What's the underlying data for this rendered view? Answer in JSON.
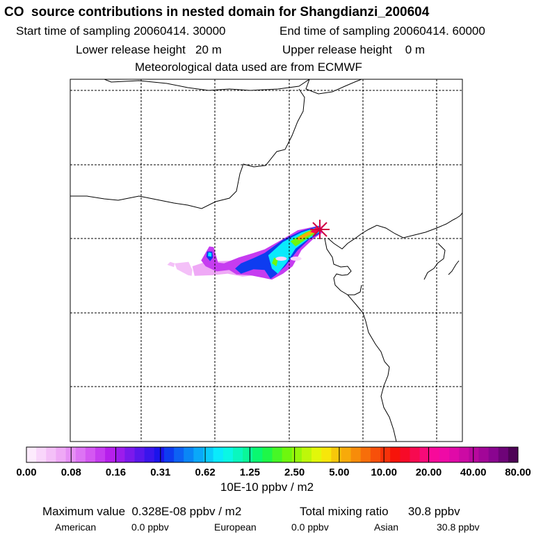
{
  "header": {
    "title": "CO  source contributions in nested domain for Shangdianzi_200604",
    "start": "Start time of sampling 20060414. 30000",
    "end": "End time of sampling 20060414. 60000",
    "lower": "Lower release height   20 m",
    "upper": "Upper release height    0 m",
    "met": "Meteorological data used are from ECMWF"
  },
  "footer": {
    "unit": "10E-10 ppbv / m2",
    "max_value": "Maximum value  0.328E-08 ppbv / m2",
    "total": "Total mixing ratio      30.8 ppbv",
    "regions": [
      {
        "name": "American",
        "value": "0.0 ppbv"
      },
      {
        "name": "European",
        "value": "0.0 ppbv"
      },
      {
        "name": "Asian",
        "value": "30.8 ppbv"
      }
    ]
  },
  "chart_data": {
    "type": "heatmap",
    "colorbar": {
      "tick_labels": [
        "0.00",
        "0.08",
        "0.16",
        "0.31",
        "0.62",
        "1.25",
        "2.50",
        "5.00",
        "10.00",
        "20.00",
        "40.00",
        "80.00"
      ],
      "colors": [
        "#ffffff",
        "#fdebfd",
        "#f9d6fb",
        "#f4c0f8",
        "#efa9f6",
        "#e690f5",
        "#dd74f4",
        "#d458f2",
        "#c63cf0",
        "#b61fec",
        "#9c1cec",
        "#7b19ec",
        "#5a17ec",
        "#3a15ec",
        "#1b14ec",
        "#0e3cf0",
        "#0d62f4",
        "#0a86f6",
        "#0aa8f9",
        "#0acbfb",
        "#0aeafc",
        "#0af7e5",
        "#0af7bf",
        "#0af799",
        "#0af770",
        "#1ef748",
        "#46f726",
        "#6ef70e",
        "#96f70a",
        "#bef70a",
        "#e2f70a",
        "#f7e60a",
        "#f7c80a",
        "#f7aa0a",
        "#f78c0a",
        "#f76e0a",
        "#f7500a",
        "#f7320a",
        "#f7140a",
        "#f70a28",
        "#f70a50",
        "#f70a78",
        "#f70a9a",
        "#ef0aa6",
        "#e00aa8",
        "#cc0aa4",
        "#b8089e",
        "#a20698",
        "#8a0590",
        "#6e0478",
        "#4e0356"
      ]
    },
    "grid": true,
    "source_site": "Shangdianzi",
    "plumes": [
      {
        "level": 0.04,
        "points": [
          [
            -1.02,
            0.04
          ],
          [
            -0.83,
            0.06
          ],
          [
            -0.78,
            -0.05
          ],
          [
            -0.79,
            -0.13
          ],
          [
            -0.84,
            -0.12
          ],
          [
            -0.99,
            -0.04
          ]
        ]
      },
      {
        "level": 0.04,
        "points": [
          [
            -1.02,
            0.04
          ],
          [
            -1.08,
            0.06
          ],
          [
            -1.12,
            0.02
          ],
          [
            -1.03,
            -0.01
          ]
        ]
      },
      {
        "level": 0.06,
        "points": [
          [
            -0.78,
            0.0
          ],
          [
            -0.6,
            0.06
          ],
          [
            -0.2,
            0.08
          ],
          [
            -0.05,
            0.08
          ],
          [
            0.2,
            0.18
          ],
          [
            0.42,
            0.34
          ],
          [
            0.63,
            0.45
          ],
          [
            0.92,
            0.55
          ],
          [
            0.99,
            0.55
          ],
          [
            0.98,
            0.44
          ],
          [
            0.82,
            0.36
          ],
          [
            0.68,
            0.22
          ],
          [
            0.55,
            0.0
          ],
          [
            0.45,
            -0.05
          ],
          [
            0.3,
            -0.1
          ],
          [
            0.1,
            -0.12
          ],
          [
            -0.1,
            -0.14
          ],
          [
            -0.3,
            -0.1
          ],
          [
            -0.5,
            -0.12
          ],
          [
            -0.75,
            -0.13
          ]
        ]
      },
      {
        "level": 0.12,
        "points": [
          [
            -0.62,
            0.15
          ],
          [
            -0.55,
            0.27
          ],
          [
            -0.49,
            0.26
          ],
          [
            -0.46,
            0.15
          ],
          [
            -0.43,
            0.05
          ],
          [
            -0.35,
            0.04
          ],
          [
            -0.15,
            0.12
          ],
          [
            0.05,
            0.18
          ],
          [
            0.2,
            0.23
          ],
          [
            0.45,
            0.37
          ],
          [
            0.65,
            0.49
          ],
          [
            0.93,
            0.55
          ],
          [
            0.98,
            0.46
          ],
          [
            0.85,
            0.36
          ],
          [
            0.7,
            0.22
          ],
          [
            0.58,
            0.0
          ],
          [
            0.45,
            -0.1
          ],
          [
            0.3,
            -0.18
          ],
          [
            0.15,
            -0.15
          ],
          [
            0.0,
            -0.12
          ],
          [
            -0.18,
            -0.11
          ],
          [
            -0.28,
            -0.05
          ],
          [
            -0.45,
            -0.07
          ],
          [
            -0.6,
            0.0
          ],
          [
            -0.66,
            0.08
          ]
        ]
      },
      {
        "level": 0.35,
        "points": [
          [
            -0.59,
            0.13
          ],
          [
            -0.58,
            0.2
          ],
          [
            -0.51,
            0.2
          ],
          [
            -0.5,
            0.12
          ],
          [
            -0.54,
            0.07
          ]
        ]
      },
      {
        "level": 0.35,
        "points": [
          [
            -0.2,
            -0.03
          ],
          [
            -0.12,
            0.04
          ],
          [
            0.05,
            0.11
          ],
          [
            0.2,
            0.18
          ],
          [
            0.45,
            0.36
          ],
          [
            0.7,
            0.48
          ],
          [
            0.94,
            0.55
          ],
          [
            0.96,
            0.45
          ],
          [
            0.8,
            0.36
          ],
          [
            0.65,
            0.22
          ],
          [
            0.48,
            0.0
          ],
          [
            0.35,
            -0.12
          ],
          [
            0.28,
            -0.17
          ],
          [
            0.2,
            -0.05
          ],
          [
            0.05,
            -0.04
          ],
          [
            -0.12,
            -0.1
          ]
        ]
      },
      {
        "level": 0.8,
        "points": [
          [
            -0.57,
            0.14
          ],
          [
            -0.56,
            0.19
          ],
          [
            -0.52,
            0.18
          ],
          [
            -0.52,
            0.13
          ]
        ]
      },
      {
        "level": 0.8,
        "points": [
          [
            0.25,
            0.15
          ],
          [
            0.45,
            0.33
          ],
          [
            0.7,
            0.46
          ],
          [
            0.94,
            0.54
          ],
          [
            0.94,
            0.46
          ],
          [
            0.78,
            0.36
          ],
          [
            0.62,
            0.24
          ],
          [
            0.5,
            0.05
          ],
          [
            0.38,
            -0.1
          ],
          [
            0.3,
            -0.03
          ]
        ]
      },
      {
        "level": 2.2,
        "points": [
          [
            0.3,
            0.04
          ],
          [
            0.33,
            0.12
          ],
          [
            0.38,
            0.09
          ],
          [
            0.36,
            0.0
          ]
        ]
      },
      {
        "level": 2.2,
        "points": [
          [
            0.55,
            0.34
          ],
          [
            0.75,
            0.46
          ],
          [
            0.93,
            0.53
          ],
          [
            0.93,
            0.47
          ],
          [
            0.78,
            0.38
          ],
          [
            0.62,
            0.27
          ]
        ]
      },
      {
        "level": 5.5,
        "points": [
          [
            0.63,
            0.38
          ],
          [
            0.78,
            0.46
          ],
          [
            0.92,
            0.52
          ],
          [
            0.92,
            0.48
          ],
          [
            0.78,
            0.41
          ],
          [
            0.67,
            0.35
          ]
        ]
      },
      {
        "level": 15.0,
        "points": [
          [
            0.82,
            0.47
          ],
          [
            0.9,
            0.53
          ],
          [
            0.95,
            0.52
          ],
          [
            0.9,
            0.44
          ]
        ]
      }
    ],
    "contour_ticks": [
      -0.02,
      0.06,
      0.18,
      0.36,
      0.66
    ]
  },
  "map_style": {
    "frame_color": "#000000",
    "grid_color": "#000000",
    "coast_color": "#000000",
    "marker_color": "#d00040"
  }
}
